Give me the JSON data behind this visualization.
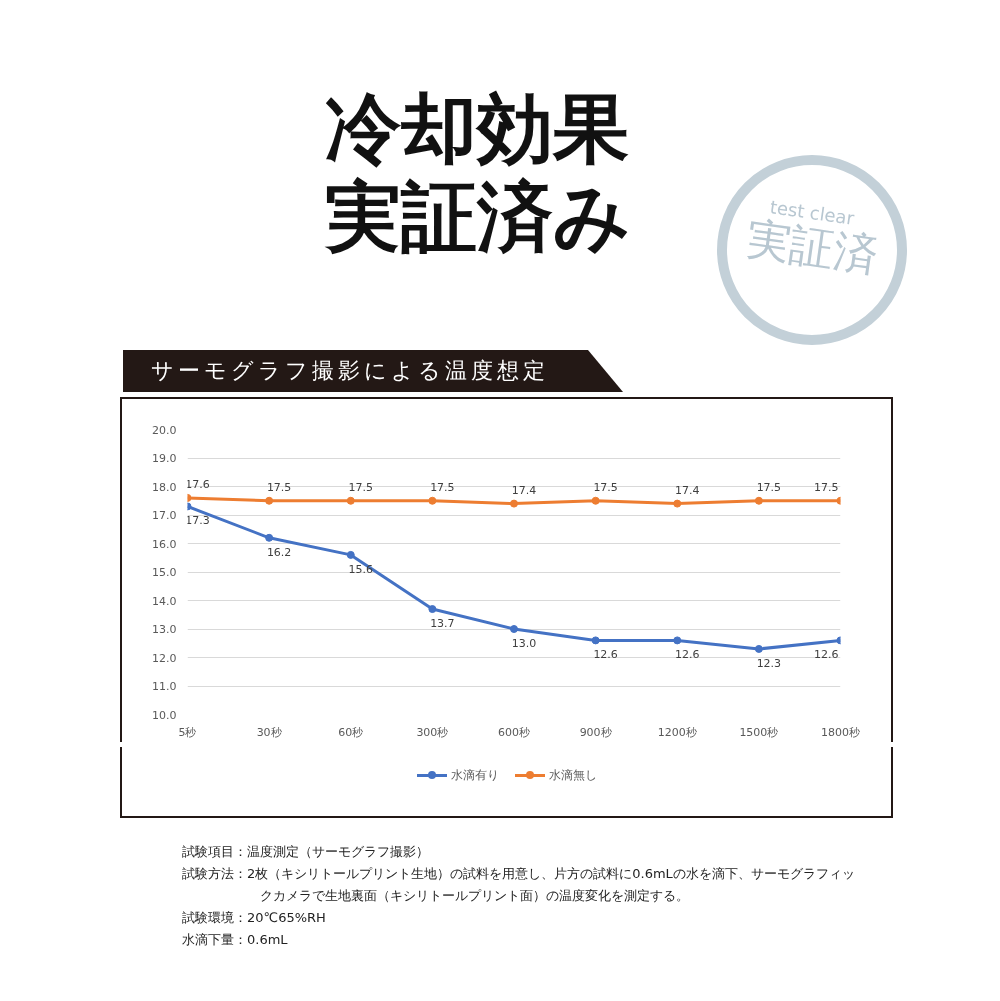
{
  "chart_data": {
    "type": "line",
    "title": "冷却効果実証済み",
    "subtitle": "サーモグラフ撮影による温度想定",
    "categories": [
      "5秒",
      "30秒",
      "60秒",
      "300秒",
      "600秒",
      "900秒",
      "1200秒",
      "1500秒",
      "1800秒"
    ],
    "series": [
      {
        "name": "水滴有り",
        "color": "#4472c4",
        "values": [
          17.3,
          16.2,
          15.6,
          13.7,
          13.0,
          12.6,
          12.6,
          12.3,
          12.6
        ],
        "value_labels": [
          "17.3",
          "16.2",
          "15.6",
          "13.7",
          "13.0",
          "12.6",
          "12.6",
          "12.3",
          "12.6"
        ]
      },
      {
        "name": "水滴無し",
        "color": "#ed7d31",
        "values": [
          17.6,
          17.5,
          17.5,
          17.5,
          17.4,
          17.5,
          17.4,
          17.5,
          17.5
        ],
        "value_labels": [
          "17.6",
          "17.5",
          "17.5",
          "17.5",
          "17.4",
          "17.5",
          "17.4",
          "17.5",
          "17.5"
        ]
      }
    ],
    "ylim": [
      10,
      20
    ],
    "yticks": [
      {
        "value": 10,
        "label": "10.0"
      },
      {
        "value": 11,
        "label": "11.0"
      },
      {
        "value": 12,
        "label": "12.0"
      },
      {
        "value": 13,
        "label": "13.0"
      },
      {
        "value": 14,
        "label": "14.0"
      },
      {
        "value": 15,
        "label": "15.0"
      },
      {
        "value": 16,
        "label": "16.0"
      },
      {
        "value": 17,
        "label": "17.0"
      },
      {
        "value": 18,
        "label": "18.0"
      },
      {
        "value": 19,
        "label": "19.0"
      },
      {
        "value": 20,
        "label": "20.0"
      }
    ],
    "grid": "y",
    "legend": "bottom",
    "marker": "circle",
    "line_style": "solid",
    "annotations": [
      "test clear",
      "実証済",
      "試験項目：温度測定（サーモグラフ撮影）",
      "試験方法：2枚（キシリトールプリント生地）の試料を用意し、片方の試料に0.6mLの水を滴下、サーモグラフィックカメラで生地裏面（キシリトールプリント面）の温度変化を測定する。",
      "試験環境：20℃65%RH",
      "水滴下量：0.6mL"
    ]
  }
}
